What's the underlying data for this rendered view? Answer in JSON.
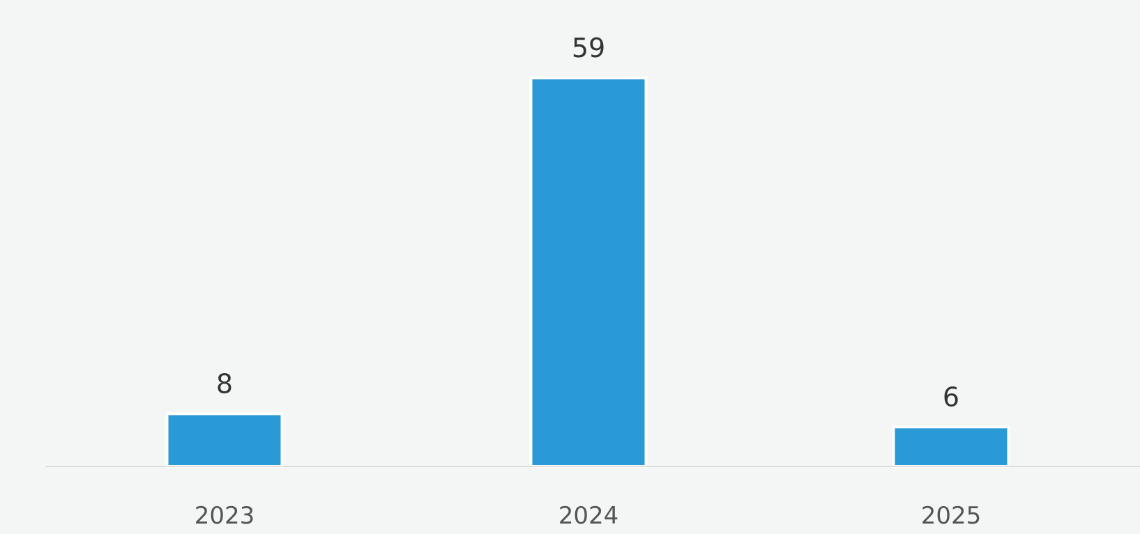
{
  "chart_data": {
    "type": "bar",
    "categories": [
      "2023",
      "2024",
      "2025"
    ],
    "values": [
      8,
      59,
      6
    ],
    "data_labels": [
      "8",
      "59",
      "6"
    ],
    "title": "",
    "xlabel": "",
    "ylabel": "",
    "ylim": [
      0,
      60
    ],
    "grid": false,
    "legend": "none",
    "colors": {
      "bar": "#2a9ad7",
      "bar_outline": "#ffffff",
      "axis": "#dddddd",
      "label_text": "#333333",
      "tick_text": "#555555",
      "background": "#f4f5f5"
    }
  }
}
